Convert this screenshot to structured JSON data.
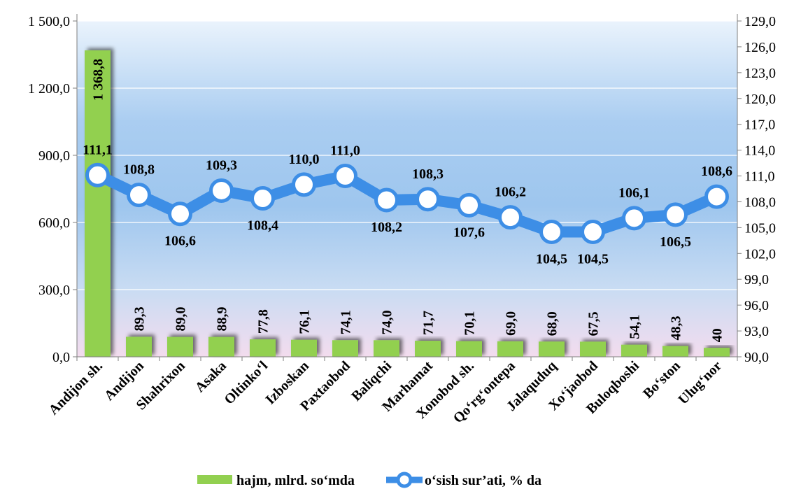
{
  "chart_data": {
    "type": "bar",
    "categories": [
      "Andijon sh.",
      "Andijon",
      "Shahrixon",
      "Asaka",
      "Oltinko‘l",
      "Izboskan",
      "Paxtaobod",
      "Baliqchi",
      "Marhamat",
      "Xonobod sh.",
      "Qo‘rg‘ontepa",
      "Jalaquduq",
      "Xo‘jaobod",
      "Buloqboshi",
      "Bo‘ston",
      "Ulug‘nor"
    ],
    "series": [
      {
        "name": "hajm, mlrd. so‘mda",
        "type": "bar",
        "axis": "left",
        "color": "#92d050",
        "values": [
          1368.8,
          89.3,
          89.0,
          88.9,
          77.8,
          76.1,
          74.1,
          74.0,
          71.7,
          70.1,
          69.0,
          68.0,
          67.5,
          54.1,
          48.3,
          40
        ],
        "labels": [
          "1 368,8",
          "89,3",
          "89,0",
          "88,9",
          "77,8",
          "76,1",
          "74,1",
          "74,0",
          "71,7",
          "70,1",
          "69,0",
          "68,0",
          "67,5",
          "54,1",
          "48,3",
          "40"
        ]
      },
      {
        "name": "o‘sish sur’ati, % da",
        "type": "line",
        "axis": "right",
        "color": "#3d8ee6",
        "values": [
          111.1,
          108.8,
          106.6,
          109.3,
          108.4,
          110.0,
          111.0,
          108.2,
          108.3,
          107.6,
          106.2,
          104.5,
          104.5,
          106.1,
          106.5,
          108.6
        ],
        "labels": [
          "111,1",
          "108,8",
          "106,6",
          "109,3",
          "108,4",
          "110,0",
          "111,0",
          "108,2",
          "108,3",
          "107,6",
          "106,2",
          "104,5",
          "104,5",
          "106,1",
          "106,5",
          "108,6"
        ]
      }
    ],
    "y_left": {
      "range": [
        0,
        1500
      ],
      "ticks": [
        0,
        300,
        600,
        900,
        1200,
        1500
      ],
      "tick_labels": [
        "0,0",
        "300,0",
        "600,0",
        "900,0",
        "1 200,0",
        "1 500,0"
      ]
    },
    "y_right": {
      "range": [
        90,
        129
      ],
      "ticks": [
        90,
        93,
        96,
        99,
        102,
        105,
        108,
        111,
        114,
        117,
        120,
        123,
        126,
        129
      ],
      "tick_labels": [
        "90,0",
        "93,0",
        "96,0",
        "99,0",
        "102,0",
        "105,0",
        "108,0",
        "111,0",
        "114,0",
        "117,0",
        "120,0",
        "123,0",
        "126,0",
        "129,0"
      ]
    },
    "grid": true,
    "legend": "bottom",
    "title": "",
    "xlabel": "",
    "ylabel": ""
  },
  "legend": {
    "bar_label": "hajm, mlrd. so‘mda",
    "line_label": "o‘sish sur’ati, % da"
  }
}
